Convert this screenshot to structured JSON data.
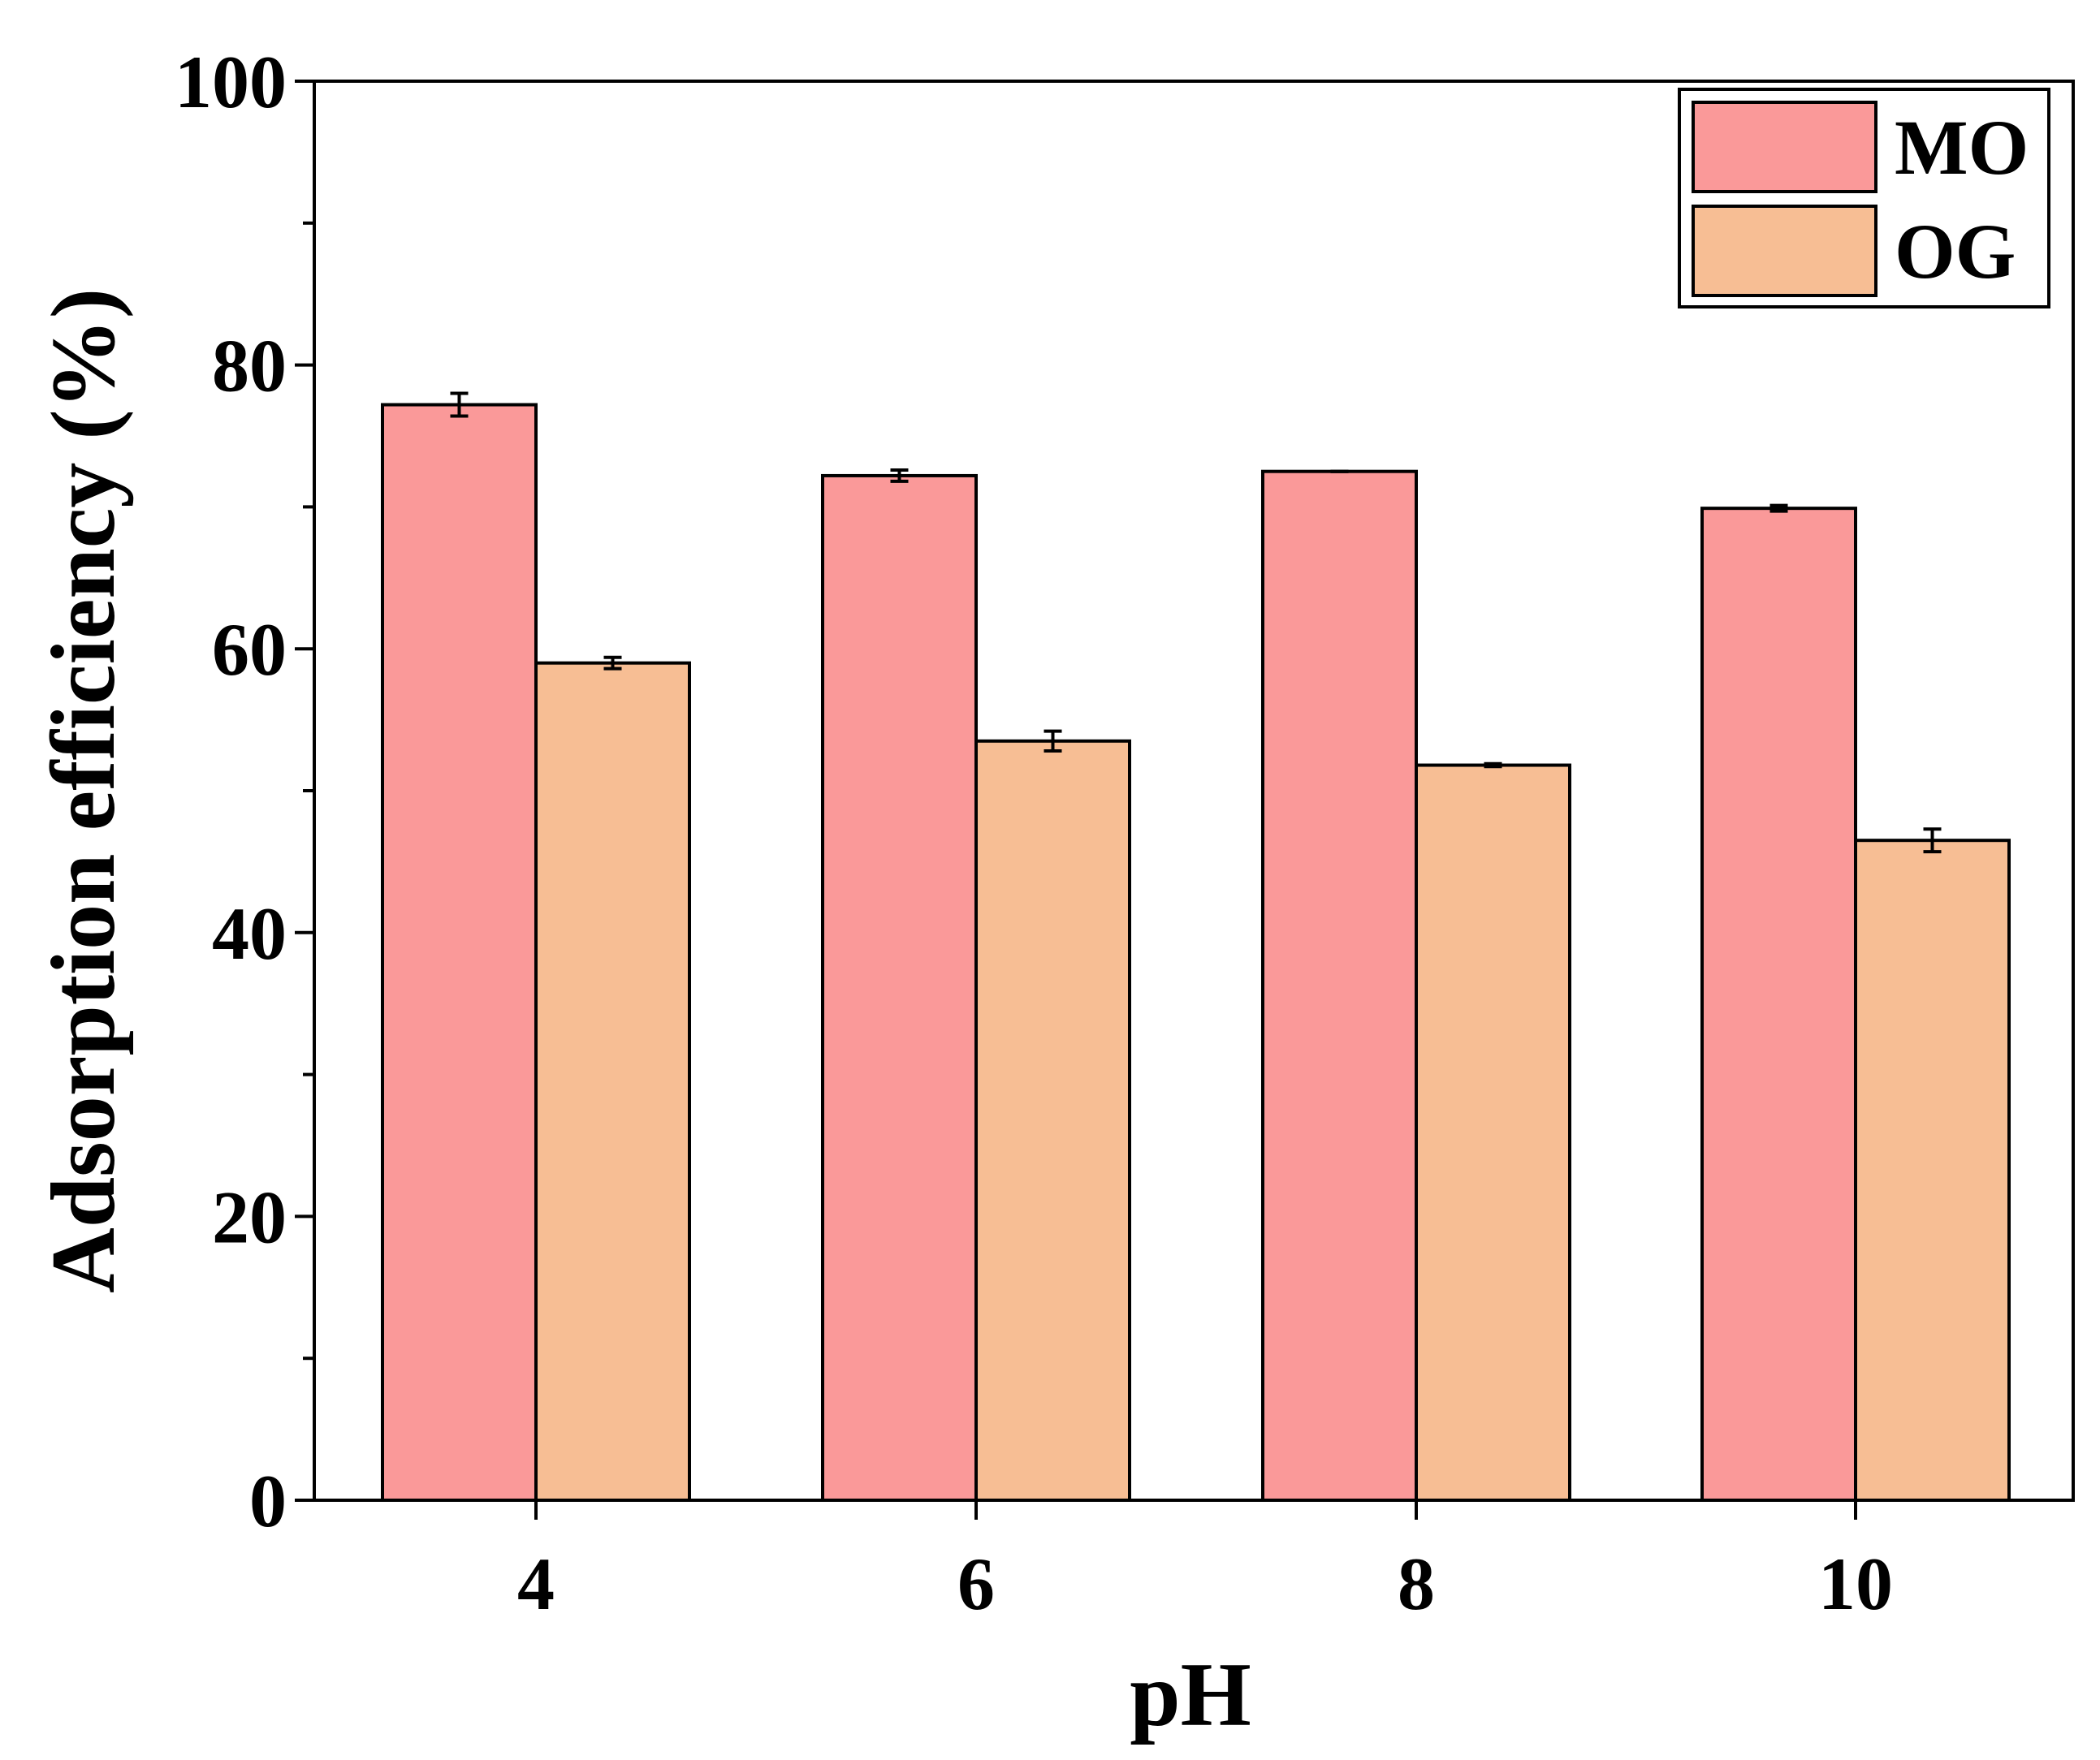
{
  "chart_data": {
    "type": "bar",
    "title": "",
    "xlabel": "pH",
    "ylabel": "Adsorption efficiency (%)",
    "categories": [
      "4",
      "6",
      "8",
      "10"
    ],
    "ylim": [
      0,
      100
    ],
    "yticks": [
      "0",
      "20",
      "40",
      "60",
      "80",
      "100"
    ],
    "legend_position": "top-right",
    "series": [
      {
        "name": "MO",
        "color": "#fa9999",
        "values": [
          77.2,
          72.2,
          72.5,
          69.9
        ],
        "errors": [
          0.8,
          0.4,
          0.0,
          0.2
        ]
      },
      {
        "name": "OG",
        "color": "#f7be94",
        "values": [
          59.0,
          53.5,
          51.8,
          46.5
        ],
        "errors": [
          0.4,
          0.7,
          0.1,
          0.8
        ]
      }
    ]
  }
}
